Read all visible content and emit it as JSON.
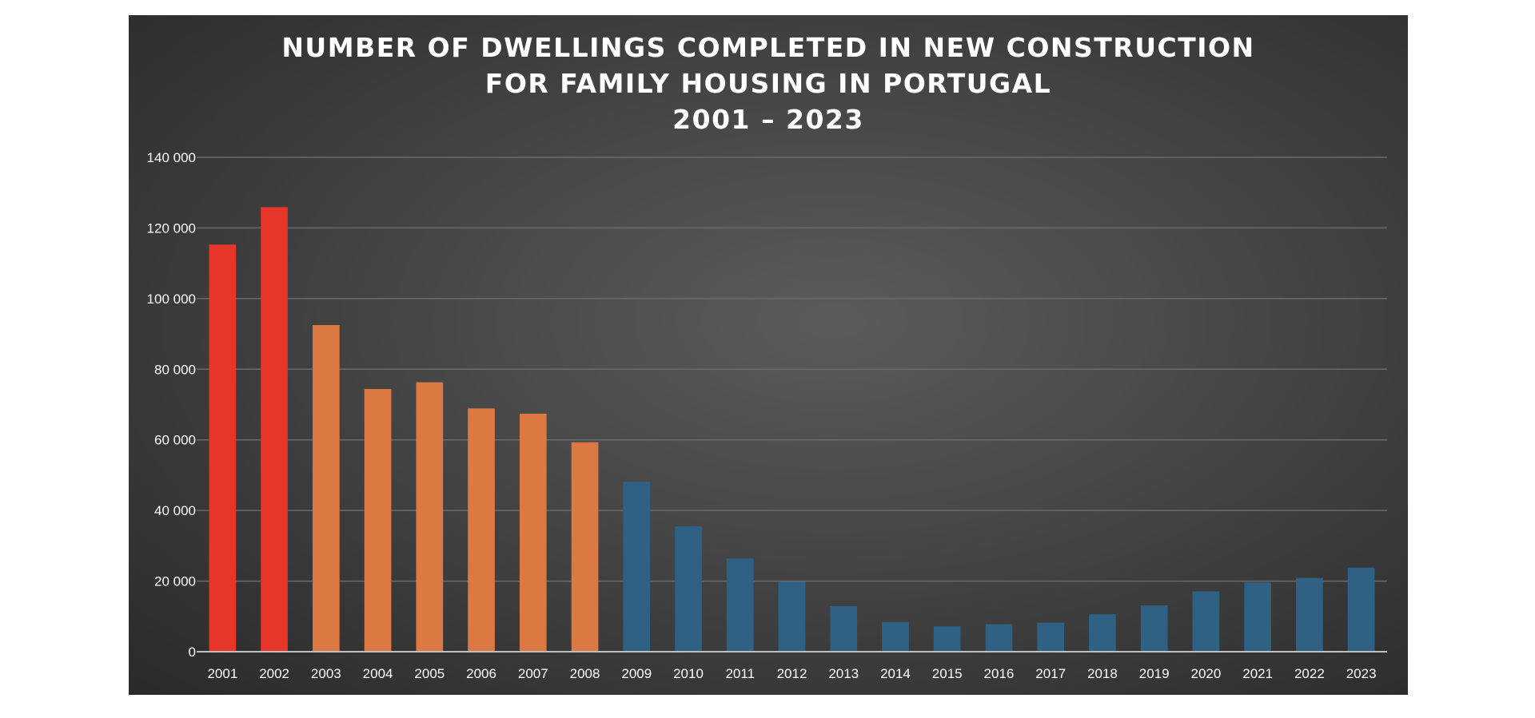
{
  "chart_data": {
    "type": "bar",
    "title_lines": [
      "NUMBER OF DWELLINGS COMPLETED IN NEW CONSTRUCTION",
      "FOR FAMILY HOUSING IN PORTUGAL",
      "2001 – 2023"
    ],
    "xlabel": "",
    "ylabel": "",
    "categories": [
      "2001",
      "2002",
      "2003",
      "2004",
      "2005",
      "2006",
      "2007",
      "2008",
      "2009",
      "2010",
      "2011",
      "2012",
      "2013",
      "2014",
      "2015",
      "2016",
      "2017",
      "2018",
      "2019",
      "2020",
      "2021",
      "2022",
      "2023"
    ],
    "values": [
      115300,
      125900,
      92500,
      74400,
      76300,
      68900,
      67400,
      59300,
      48100,
      35500,
      26400,
      19800,
      12900,
      8400,
      7200,
      7800,
      8200,
      10600,
      13100,
      17100,
      19600,
      20900,
      23800
    ],
    "bar_colors": [
      "#e8352a",
      "#e8352a",
      "#dc7943",
      "#dc7943",
      "#dc7943",
      "#dc7943",
      "#dc7943",
      "#dc7943",
      "#2f6185",
      "#2f6185",
      "#2f6185",
      "#2f6185",
      "#2f6185",
      "#2f6185",
      "#2f6185",
      "#2f6185",
      "#2f6185",
      "#2f6185",
      "#2f6185",
      "#2f6185",
      "#2f6185",
      "#2f6185",
      "#2f6185"
    ],
    "ylim": [
      0,
      140000
    ],
    "yticks": [
      0,
      20000,
      40000,
      60000,
      80000,
      100000,
      120000,
      140000
    ],
    "ytick_labels": [
      "0",
      "20 000",
      "40 000",
      "60 000",
      "80 000",
      "100 000",
      "120 000",
      "140 000"
    ],
    "grid": true,
    "background": "dark-radial-gradient",
    "text_color": "#ffffff",
    "grid_color": "#6a6a6a"
  }
}
